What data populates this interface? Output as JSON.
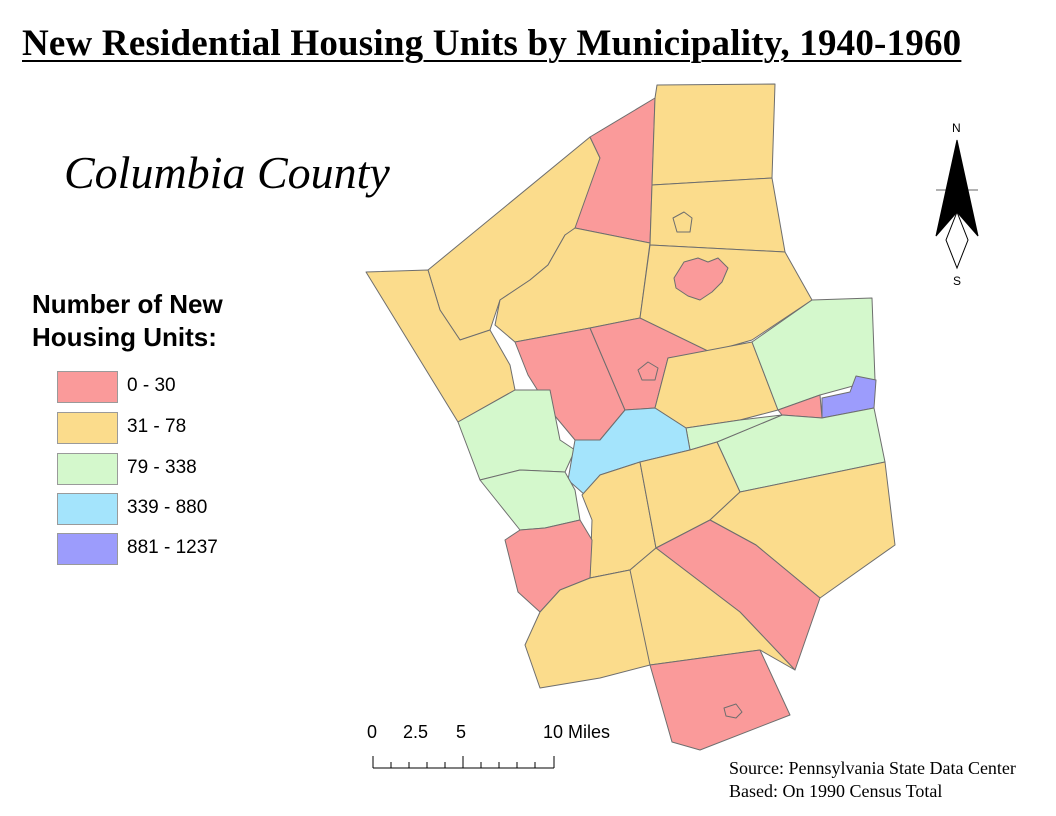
{
  "title": "New Residential Housing Units by Municipality, 1940-1960",
  "county_label": "Columbia County",
  "legend": {
    "title_line1": "Number of New",
    "title_line2": "Housing Units:",
    "classes": [
      {
        "label": "0 - 30",
        "color": "#fa9a9a"
      },
      {
        "label": "31 - 78",
        "color": "#fbdc8c"
      },
      {
        "label": "79 - 338",
        "color": "#d4f8cc"
      },
      {
        "label": "339 - 880",
        "color": "#a4e4fc"
      },
      {
        "label": "881 - 1237",
        "color": "#9c9cfc"
      }
    ]
  },
  "scale_bar": {
    "labels": [
      "0",
      "2.5",
      "5",
      "10 Miles"
    ]
  },
  "north_arrow": {
    "north": "N",
    "south": "S",
    "icon": "north-arrow-icon"
  },
  "source": {
    "line1": "Source: Pennsylvania State Data Center",
    "line2": "Based: On 1990 Census Total"
  }
}
